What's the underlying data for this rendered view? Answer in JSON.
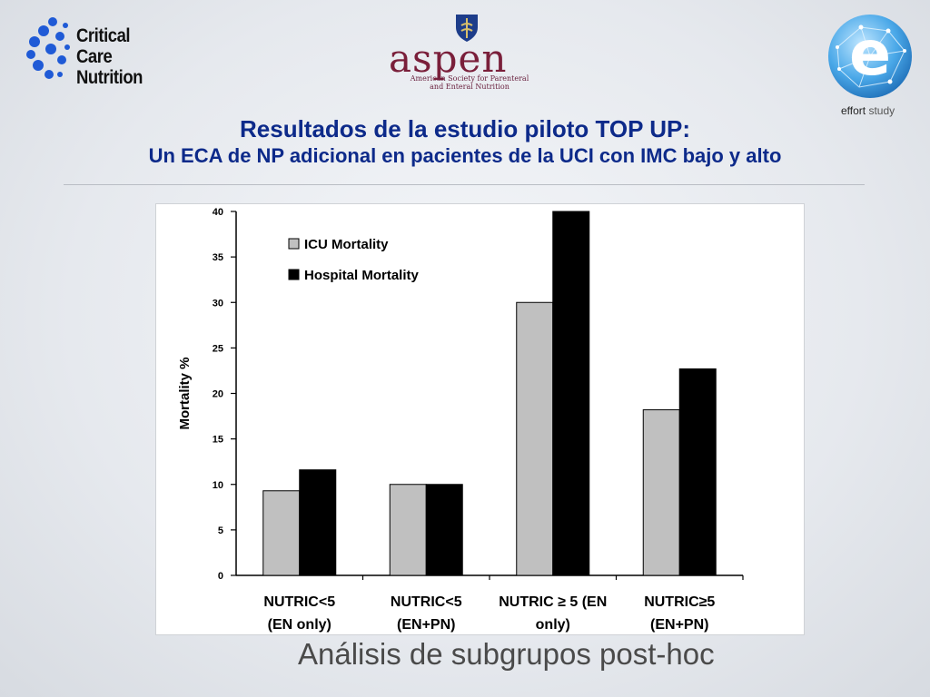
{
  "logos": {
    "critical_care": {
      "line1": "Critical Care",
      "line2": "Nutrition",
      "icon": "critical-care-molecule-icon",
      "color": "#1f5ad6"
    },
    "aspen": {
      "word": "aspen",
      "sub_line1": "American Society for Parenteral",
      "sub_line2": "and Enteral Nutrition",
      "color": "#7a1f3a"
    },
    "effort": {
      "letter": "e",
      "caption_bold": "effort",
      "caption_rest": " study",
      "color": "#3a9ad8"
    }
  },
  "header": {
    "title": "Resultados de la estudio piloto TOP UP:",
    "subtitle": "Un ECA de NP adicional en pacientes de la UCI con IMC bajo y alto"
  },
  "chart_data": {
    "type": "bar",
    "ylabel": "Mortality %",
    "xlabel": "",
    "ylim": [
      0,
      40
    ],
    "yticks": [
      0,
      5,
      10,
      15,
      20,
      25,
      30,
      35,
      40
    ],
    "categories": [
      [
        "NUTRIC<5",
        "(EN only)"
      ],
      [
        "NUTRIC<5",
        "(EN+PN)"
      ],
      [
        "NUTRIC ≥ 5 (EN",
        "only)"
      ],
      [
        "NUTRIC≥5",
        "(EN+PN)"
      ]
    ],
    "series": [
      {
        "name": "ICU Mortality",
        "color": "#c0c0c0",
        "values": [
          9.3,
          10.0,
          30.0,
          18.2
        ]
      },
      {
        "name": "Hospital Mortality",
        "color": "#000000",
        "values": [
          11.6,
          10.0,
          40.0,
          22.7
        ]
      }
    ],
    "legend_position": "top-left",
    "grid": false
  },
  "footer": {
    "text": "Análisis de subgrupos post-hoc"
  }
}
